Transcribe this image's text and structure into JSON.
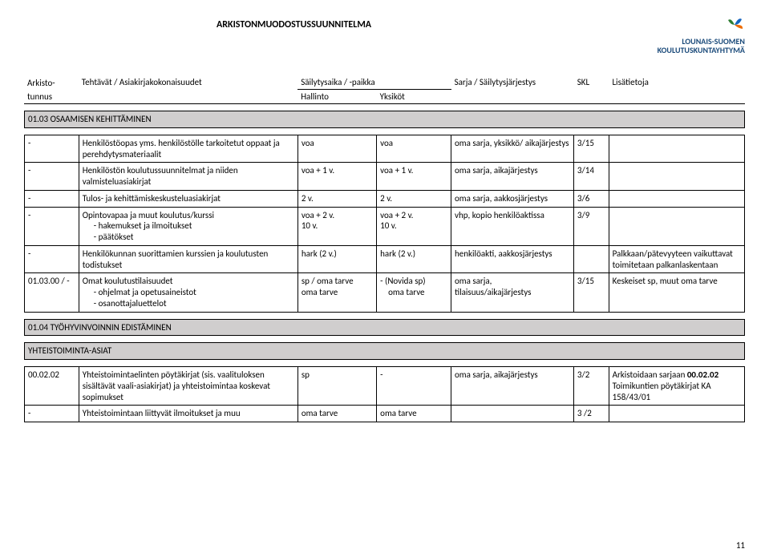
{
  "doc_title": "ARKISTONMUODOSTUSSUUNNITELMA",
  "logo_lines": [
    "LOUNAIS-SUOMEN",
    "KOULUTUSKUNTAYHTYMÄ"
  ],
  "page_number": "11",
  "master_header": {
    "arkisto_l1": "Arkisto-",
    "arkisto_l2": "tunnus",
    "tehtavat": "Tehtävät / Asiakirjakokonaisuudet",
    "sailyty_top": "Säilytysaika / -paikka",
    "hallinto": "Hallinto",
    "yksikot": "Yksiköt",
    "sarja": "Sarja / Säilytysjärjestys",
    "skl": "SKL",
    "lisa": "Lisätietoja"
  },
  "sections": [
    {
      "heading": "01.03 OSAAMISEN KEHITTÄMINEN",
      "rows": [
        {
          "c1": "-",
          "c2": "Henkilöstöopas yms. henkilöstölle tarkoitetut oppaat ja perehdytysmateriaalit",
          "c3": "voa",
          "c4": "voa",
          "c5": "oma sarja, yksikkö/ aikajärjestys",
          "c6": "3/15",
          "c7": ""
        },
        {
          "c1": "-",
          "c2": "Henkilöstön koulutussuunnitelmat ja niiden valmisteluasiakirjat",
          "c3": "voa + 1 v.",
          "c4": "voa + 1 v.",
          "c5": "oma sarja, aikajärjestys",
          "c6": "3/14",
          "c7": ""
        },
        {
          "c1": "-",
          "c2": "Tulos- ja kehittämiskeskusteluasiakirjat",
          "c3": "2 v.",
          "c4": "2 v.",
          "c5": "oma sarja, aakkosjärjestys",
          "c6": "3/6",
          "c7": ""
        },
        {
          "c1": "-",
          "c2_main": "Opintovapaa ja muut koulutus/kurssi",
          "c2_sub1": "- hakemukset ja ilmoitukset",
          "c2_sub2": "- päätökset",
          "c3_l1": "",
          "c3_l2": "voa + 2 v.",
          "c3_l3": "10 v.",
          "c4_l1": "",
          "c4_l2": "voa + 2 v.",
          "c4_l3": "10 v.",
          "c5": "vhp, kopio henkilöaktissa",
          "c6": "3/9",
          "c7": ""
        },
        {
          "c1": "-",
          "c2": "Henkilökunnan suorittamien kurssien ja koulutusten todistukset",
          "c3": "hark (2 v.)",
          "c4": "hark (2 v.)",
          "c5": "henkilöakti, aakkosjärjestys",
          "c6": "",
          "c7": "Palkkaan/pätevyyteen vaikuttavat toimitetaan palkanlaskentaan"
        },
        {
          "c1": "01.03.00 / -",
          "c2_main": "Omat koulutustilaisuudet",
          "c2_sub1": "- ohjelmat ja opetusaineistot",
          "c2_sub2": "- osanottajaluettelot",
          "c3_l1": "",
          "c3_l2": "sp / oma tarve",
          "c3_l3": "oma tarve",
          "c4_l1": "",
          "c4_l2": "-   (Novida sp)",
          "c4_l3": "    oma tarve",
          "c5": "oma sarja, tilaisuus/aikajärjestys",
          "c6": "3/15",
          "c7": "Keskeiset sp, muut oma tarve"
        }
      ]
    },
    {
      "heading": "01.04 TYÖHYVINVOINNIN EDISTÄMINEN",
      "rows": []
    },
    {
      "heading": "YHTEISTOIMINTA-ASIAT",
      "rows": [
        {
          "c1": "00.02.02",
          "c2": "Yhteistoimintaelinten pöytäkirjat (sis. vaalituloksen sisältävät vaali-asiakirjat) ja yhteistoimintaa koskevat sopimukset",
          "c3": "sp",
          "c4": "-",
          "c5": "oma sarja, aikajärjestys",
          "c6": "3/2",
          "c7": "Arkistoidaan sarjaan 00.02.02 Toimikuntien pöytäkirjat KA 158/43/01",
          "c7_bold": "00.02.02"
        },
        {
          "c1": "-",
          "c2": "Yhteistoimintaan liittyvät ilmoitukset ja muu",
          "c3": "oma tarve",
          "c4": "oma tarve",
          "c5": "",
          "c6": "3 /2",
          "c7": ""
        }
      ]
    }
  ],
  "colors": {
    "section_bg": "#d0cece",
    "logo_text": "#1a4a7a",
    "logo_petal1": "#2e7d32",
    "logo_petal2": "#1565c0",
    "logo_petal3": "#ef6c00"
  }
}
